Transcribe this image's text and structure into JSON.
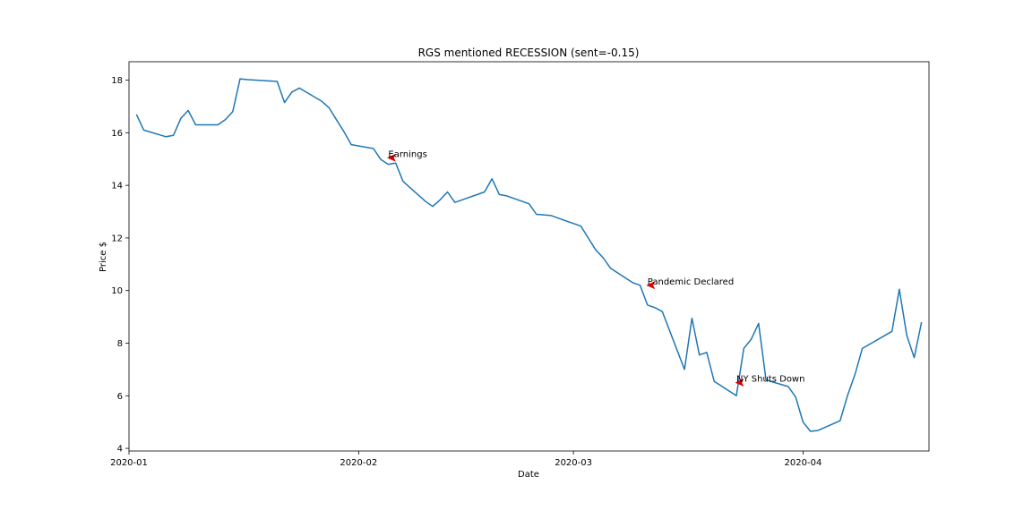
{
  "chart_data": {
    "type": "line",
    "title": "RGS mentioned RECESSION (sent=-0.15)",
    "xlabel": "Date",
    "ylabel": "Price $",
    "xlim": [
      "2020-01-01",
      "2020-04-18"
    ],
    "ylim": [
      3.9,
      18.7
    ],
    "grid": false,
    "x_ticks": [
      {
        "date": "2020-01-01",
        "label": "2020-01"
      },
      {
        "date": "2020-02-01",
        "label": "2020-02"
      },
      {
        "date": "2020-03-01",
        "label": "2020-03"
      },
      {
        "date": "2020-04-01",
        "label": "2020-04"
      }
    ],
    "y_ticks": [
      4,
      6,
      8,
      10,
      12,
      14,
      16,
      18
    ],
    "series": [
      {
        "color": "#1f77b4",
        "x": [
          "2020-01-02",
          "2020-01-03",
          "2020-01-06",
          "2020-01-07",
          "2020-01-08",
          "2020-01-09",
          "2020-01-10",
          "2020-01-13",
          "2020-01-14",
          "2020-01-15",
          "2020-01-16",
          "2020-01-17",
          "2020-01-21",
          "2020-01-22",
          "2020-01-23",
          "2020-01-24",
          "2020-01-27",
          "2020-01-28",
          "2020-01-29",
          "2020-01-30",
          "2020-01-31",
          "2020-02-03",
          "2020-02-04",
          "2020-02-05",
          "2020-02-06",
          "2020-02-07",
          "2020-02-10",
          "2020-02-11",
          "2020-02-12",
          "2020-02-13",
          "2020-02-14",
          "2020-02-18",
          "2020-02-19",
          "2020-02-20",
          "2020-02-21",
          "2020-02-24",
          "2020-02-25",
          "2020-02-26",
          "2020-02-27",
          "2020-02-28",
          "2020-03-02",
          "2020-03-03",
          "2020-03-04",
          "2020-03-05",
          "2020-03-06",
          "2020-03-09",
          "2020-03-10",
          "2020-03-11",
          "2020-03-12",
          "2020-03-13",
          "2020-03-16",
          "2020-03-17",
          "2020-03-18",
          "2020-03-19",
          "2020-03-20",
          "2020-03-23",
          "2020-03-24",
          "2020-03-25",
          "2020-03-26",
          "2020-03-27",
          "2020-03-30",
          "2020-03-31",
          "2020-04-01",
          "2020-04-02",
          "2020-04-03",
          "2020-04-06",
          "2020-04-07",
          "2020-04-08",
          "2020-04-09",
          "2020-04-13",
          "2020-04-14",
          "2020-04-15",
          "2020-04-16",
          "2020-04-17"
        ],
        "y": [
          16.7,
          16.1,
          15.85,
          15.9,
          16.55,
          16.85,
          16.3,
          16.3,
          16.5,
          16.8,
          18.05,
          18.02,
          17.95,
          17.15,
          17.55,
          17.7,
          17.2,
          16.95,
          16.5,
          16.05,
          15.55,
          15.4,
          14.98,
          14.8,
          14.85,
          14.15,
          13.4,
          13.2,
          13.45,
          13.75,
          13.35,
          13.75,
          14.25,
          13.65,
          13.6,
          13.3,
          12.9,
          12.88,
          12.85,
          12.75,
          12.45,
          12.0,
          11.55,
          11.25,
          10.85,
          10.3,
          10.2,
          9.45,
          9.35,
          9.2,
          7.0,
          8.95,
          7.55,
          7.65,
          6.55,
          6.0,
          7.8,
          8.15,
          8.75,
          6.6,
          6.35,
          5.95,
          5.0,
          4.65,
          4.68,
          5.05,
          6.0,
          6.8,
          7.8,
          8.45,
          10.05,
          8.3,
          7.45,
          8.8
        ]
      }
    ],
    "annotations": [
      {
        "text": "Earnings",
        "date": "2020-02-05",
        "value": 15.05
      },
      {
        "text": "Pandemic Declared",
        "date": "2020-03-11",
        "value": 10.2
      },
      {
        "text": "NY Shuts Down",
        "date": "2020-03-23",
        "value": 6.5
      }
    ]
  }
}
